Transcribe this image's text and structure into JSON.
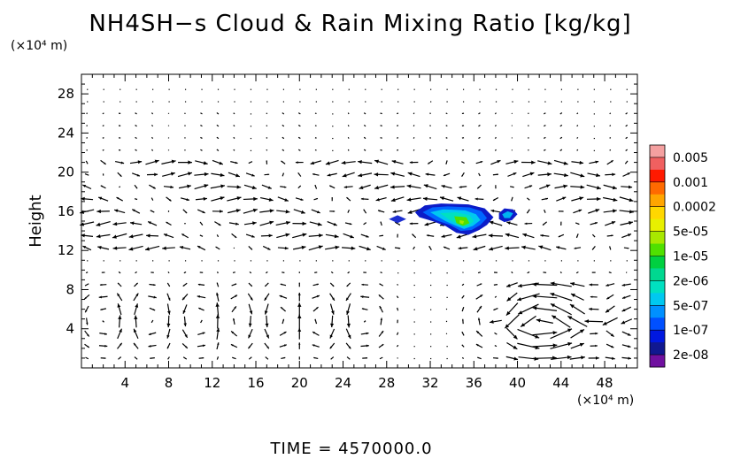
{
  "chart_data": {
    "type": "contour-vector",
    "title": "NH4SH−s Cloud & Rain Mixing Ratio [kg/kg]",
    "ylabel": "Height",
    "x_unit": "(×10⁴ m)",
    "y_unit": "(×10⁴ m)",
    "xlim": [
      0,
      51
    ],
    "ylim": [
      0,
      30
    ],
    "x_ticks": [
      4,
      8,
      12,
      16,
      20,
      24,
      28,
      32,
      36,
      40,
      44,
      48
    ],
    "y_ticks": [
      4,
      8,
      12,
      16,
      20,
      24,
      28
    ],
    "time_label": "TIME  =  4570000.0",
    "colorbar": {
      "labels": [
        "0.005",
        "0.001",
        "0.0002",
        "5e-05",
        "1e-05",
        "2e-06",
        "5e-07",
        "1e-07",
        "2e-08"
      ],
      "colors": [
        "#f4a0a0",
        "#f06060",
        "#ff1a00",
        "#ff6a00",
        "#ffa500",
        "#ffd700",
        "#e8f000",
        "#a8e800",
        "#50e000",
        "#00d040",
        "#00d890",
        "#00e0c0",
        "#00c8f0",
        "#0090ff",
        "#0050ff",
        "#0018e0",
        "#101890",
        "#7010a0"
      ]
    },
    "cloud_regions": [
      {
        "name": "main",
        "x_range": [
          30.5,
          40
        ],
        "y_range": [
          13.5,
          16.8
        ],
        "peak": "5e-05"
      },
      {
        "name": "left-fragment",
        "x_range": [
          28.2,
          29.8
        ],
        "y_range": [
          14.8,
          15.5
        ],
        "peak": "2e-07"
      }
    ]
  }
}
